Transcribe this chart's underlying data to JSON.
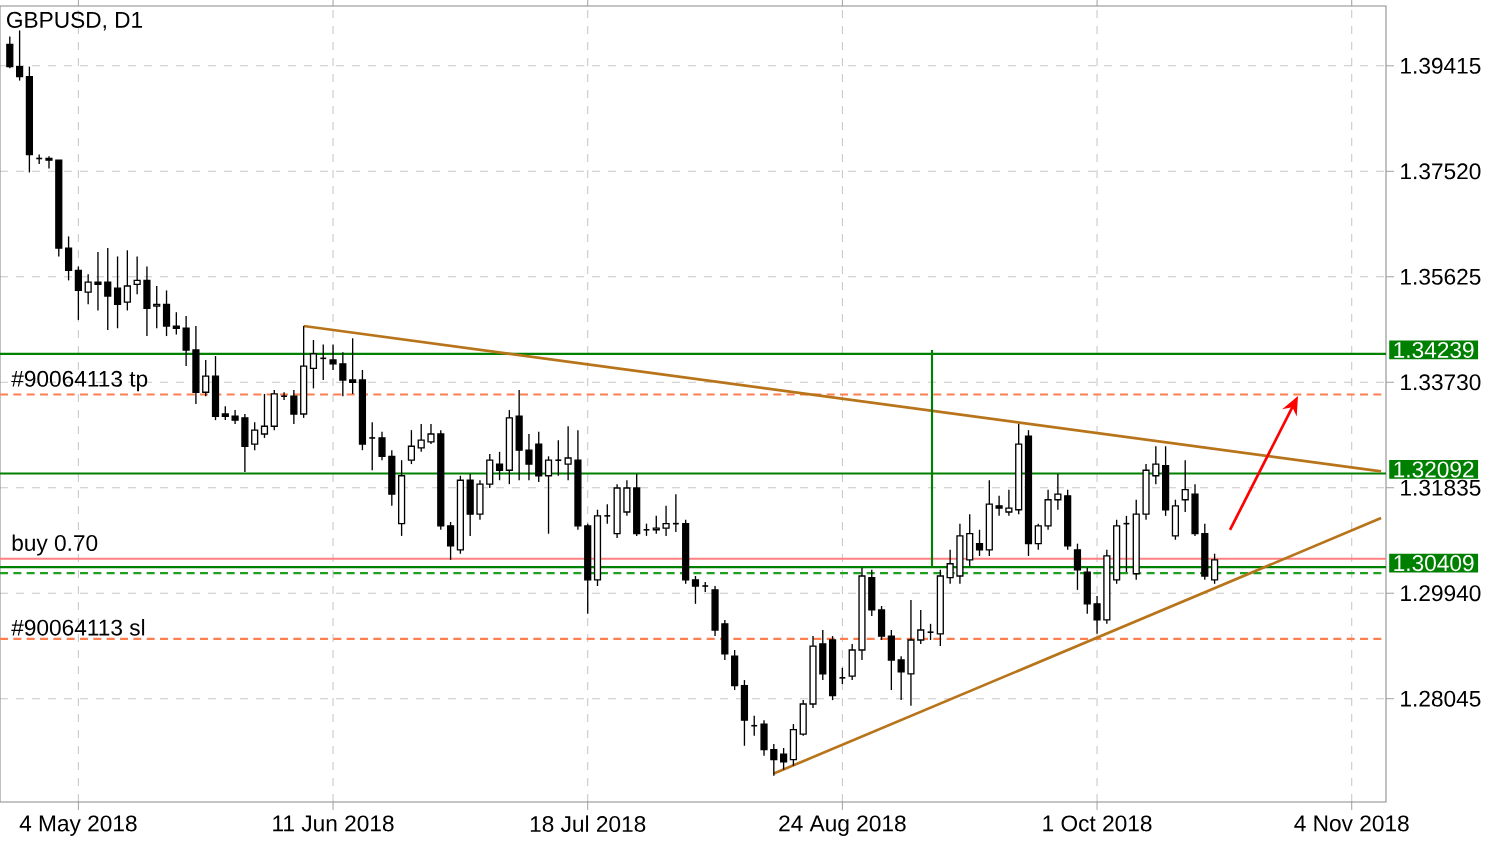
{
  "chart_data": {
    "type": "candlestick",
    "title": "GBPUSD, D1",
    "categories": [
      null,
      null,
      null,
      null,
      null,
      null,
      null,
      "4 May 2018",
      null,
      null,
      null,
      null,
      null,
      null,
      null,
      null,
      null,
      null,
      null,
      null,
      null,
      null,
      null,
      null,
      null,
      null,
      null,
      null,
      null,
      null,
      null,
      null,
      null,
      "11 Jun 2018",
      null,
      null,
      null,
      null,
      null,
      null,
      null,
      null,
      null,
      null,
      null,
      null,
      null,
      null,
      null,
      null,
      null,
      null,
      null,
      null,
      null,
      null,
      null,
      null,
      null,
      "18 Jul 2018",
      null,
      null,
      null,
      null,
      null,
      null,
      null,
      null,
      null,
      null,
      null,
      null,
      null,
      null,
      null,
      null,
      null,
      null,
      null,
      null,
      null,
      null,
      null,
      null,
      null,
      "24 Aug 2018",
      null,
      null,
      null,
      null,
      null,
      null,
      null,
      null,
      null,
      null,
      null,
      null,
      null,
      null,
      null,
      null,
      null,
      null,
      null,
      null,
      null,
      null,
      null,
      null,
      null,
      "1 Oct 2018",
      null,
      null,
      null,
      null,
      null,
      null,
      null,
      null,
      null,
      null,
      null,
      null,
      null,
      null,
      null,
      null,
      null,
      null,
      null,
      null,
      null,
      null,
      null,
      null,
      null,
      "4 Nov 2018",
      null,
      null,
      null
    ],
    "ohlc": [
      [
        1.398,
        1.3994,
        1.3937,
        1.394
      ],
      [
        1.394,
        1.4005,
        1.3915,
        1.3922
      ],
      [
        1.3922,
        1.394,
        1.375,
        1.3782
      ],
      [
        1.3775,
        1.3782,
        1.3765,
        1.3775
      ],
      [
        1.3775,
        1.3779,
        1.3757,
        1.3772
      ],
      [
        1.3772,
        1.3772,
        1.3599,
        1.3614
      ],
      [
        1.3614,
        1.3635,
        1.3556,
        1.3574
      ],
      [
        1.3574,
        1.3581,
        1.3485,
        1.3538
      ],
      [
        1.3535,
        1.3567,
        1.3513,
        1.3553
      ],
      [
        1.3553,
        1.3607,
        1.3502,
        1.3549
      ],
      [
        1.3553,
        1.3614,
        1.3467,
        1.3528
      ],
      [
        1.3542,
        1.3599,
        1.347,
        1.3513
      ],
      [
        1.3517,
        1.361,
        1.3502,
        1.3546
      ],
      [
        1.3549,
        1.3599,
        1.3531,
        1.3556
      ],
      [
        1.3556,
        1.3581,
        1.3456,
        1.3506
      ],
      [
        1.351,
        1.3546,
        1.347,
        1.3513
      ],
      [
        1.3513,
        1.3538,
        1.3456,
        1.3474
      ],
      [
        1.3474,
        1.3499,
        1.3459,
        1.347
      ],
      [
        1.347,
        1.3492,
        1.3402,
        1.3431
      ],
      [
        1.3431,
        1.3474,
        1.3334,
        1.3355
      ],
      [
        1.3355,
        1.3413,
        1.3348,
        1.3384
      ],
      [
        1.3384,
        1.342,
        1.3305,
        1.3312
      ],
      [
        1.3316,
        1.333,
        1.3305,
        1.3312
      ],
      [
        1.3312,
        1.3323,
        1.3298,
        1.3305
      ],
      [
        1.3309,
        1.3316,
        1.3212,
        1.3258
      ],
      [
        1.3262,
        1.3301,
        1.3251,
        1.3287
      ],
      [
        1.328,
        1.3352,
        1.3273,
        1.3294
      ],
      [
        1.3294,
        1.3359,
        1.3287,
        1.3352
      ],
      [
        1.3348,
        1.3355,
        1.3341,
        1.3348
      ],
      [
        1.3348,
        1.3359,
        1.3298,
        1.3316
      ],
      [
        1.3316,
        1.3474,
        1.3309,
        1.3402
      ],
      [
        1.3398,
        1.3449,
        1.3362,
        1.3424
      ],
      [
        1.3416,
        1.3441,
        1.3377,
        1.3416
      ],
      [
        1.3413,
        1.3441,
        1.3395,
        1.3406
      ],
      [
        1.3406,
        1.3427,
        1.3348,
        1.3377
      ],
      [
        1.3377,
        1.3452,
        1.3352,
        1.3373
      ],
      [
        1.3377,
        1.3395,
        1.3251,
        1.3262
      ],
      [
        1.3273,
        1.3301,
        1.3215,
        1.3273
      ],
      [
        1.3273,
        1.3284,
        1.3233,
        1.324
      ],
      [
        1.324,
        1.3251,
        1.3151,
        1.3172
      ],
      [
        1.3119,
        1.3233,
        1.3097,
        1.3205
      ],
      [
        1.3233,
        1.3287,
        1.3226,
        1.3258
      ],
      [
        1.3255,
        1.3298,
        1.3248,
        1.3269
      ],
      [
        1.3266,
        1.3298,
        1.3262,
        1.328
      ],
      [
        1.328,
        1.3287,
        1.3108,
        1.3115
      ],
      [
        1.3115,
        1.3122,
        1.3054,
        1.3079
      ],
      [
        1.3072,
        1.3205,
        1.3065,
        1.3197
      ],
      [
        1.3197,
        1.3208,
        1.3097,
        1.3136
      ],
      [
        1.3136,
        1.3197,
        1.3126,
        1.319
      ],
      [
        1.319,
        1.3244,
        1.3183,
        1.3233
      ],
      [
        1.3226,
        1.3248,
        1.3197,
        1.3215
      ],
      [
        1.3215,
        1.3323,
        1.319,
        1.3309
      ],
      [
        1.3312,
        1.3359,
        1.3197,
        1.3251
      ],
      [
        1.3251,
        1.328,
        1.3197,
        1.3226
      ],
      [
        1.3262,
        1.3284,
        1.3194,
        1.3205
      ],
      [
        1.3205,
        1.324,
        1.3101,
        1.3233
      ],
      [
        1.3233,
        1.3269,
        1.3205,
        1.3233
      ],
      [
        1.3226,
        1.3294,
        1.3197,
        1.3237
      ],
      [
        1.3233,
        1.3287,
        1.3108,
        1.3115
      ],
      [
        1.3115,
        1.3119,
        1.2957,
        1.3018
      ],
      [
        1.3018,
        1.3144,
        1.3007,
        1.3133
      ],
      [
        1.3133,
        1.3154,
        1.3119,
        1.3133
      ],
      [
        1.3101,
        1.319,
        1.3093,
        1.3183
      ],
      [
        1.314,
        1.3197,
        1.3133,
        1.3183
      ],
      [
        1.3183,
        1.3208,
        1.3097,
        1.3101
      ],
      [
        1.3108,
        1.3119,
        1.3097,
        1.3108
      ],
      [
        1.3108,
        1.3133,
        1.3101,
        1.3111
      ],
      [
        1.3111,
        1.3151,
        1.3097,
        1.3119
      ],
      [
        1.3119,
        1.3172,
        1.3104,
        1.3119
      ],
      [
        1.3119,
        1.3126,
        1.3011,
        1.3018
      ],
      [
        1.3018,
        1.3025,
        1.2975,
        1.3007
      ],
      [
        1.3007,
        1.3014,
        1.2996,
        1.3007
      ],
      [
        1.3,
        1.3007,
        1.2917,
        1.2928
      ],
      [
        1.2939,
        1.2946,
        1.2874,
        1.2885
      ],
      [
        1.2881,
        1.2892,
        1.282,
        1.2828
      ],
      [
        1.2828,
        1.2838,
        1.272,
        1.2766
      ],
      [
        1.2756,
        1.2774,
        1.2738,
        1.2756
      ],
      [
        1.2759,
        1.2766,
        1.2702,
        1.2713
      ],
      [
        1.2713,
        1.2723,
        1.2666,
        1.2695
      ],
      [
        1.2705,
        1.2716,
        1.2677,
        1.2691
      ],
      [
        1.2695,
        1.2759,
        1.2684,
        1.2749
      ],
      [
        1.2741,
        1.2802,
        1.2738,
        1.2795
      ],
      [
        1.2795,
        1.2917,
        1.2788,
        1.2899
      ],
      [
        1.2903,
        1.2928,
        1.2838,
        1.2849
      ],
      [
        1.291,
        1.2917,
        1.2802,
        1.281
      ],
      [
        1.2842,
        1.286,
        1.2831,
        1.2842
      ],
      [
        1.2845,
        1.2903,
        1.2838,
        1.2892
      ],
      [
        1.2892,
        1.304,
        1.2874,
        1.3025
      ],
      [
        1.3022,
        1.3036,
        1.2953,
        1.2964
      ],
      [
        1.2964,
        1.2971,
        1.291,
        1.2917
      ],
      [
        1.2917,
        1.2928,
        1.282,
        1.2874
      ],
      [
        1.2874,
        1.2881,
        1.2802,
        1.2853
      ],
      [
        1.2849,
        1.2982,
        1.2792,
        1.291
      ],
      [
        1.291,
        1.2964,
        1.2903,
        1.2928
      ],
      [
        1.2924,
        1.2939,
        1.291,
        1.2924
      ],
      [
        1.2921,
        1.3036,
        1.2899,
        1.3025
      ],
      [
        1.3022,
        1.3072,
        1.3011,
        1.3047
      ],
      [
        1.3025,
        1.3119,
        1.3011,
        1.3097
      ],
      [
        1.3054,
        1.3136,
        1.3043,
        1.3101
      ],
      [
        1.3083,
        1.3108,
        1.3061,
        1.3072
      ],
      [
        1.3072,
        1.3197,
        1.3061,
        1.3154
      ],
      [
        1.3151,
        1.3169,
        1.3133,
        1.3147
      ],
      [
        1.314,
        1.318,
        1.3133,
        1.3147
      ],
      [
        1.3144,
        1.3298,
        1.3136,
        1.3262
      ],
      [
        1.3276,
        1.3287,
        1.3061,
        1.3083
      ],
      [
        1.3083,
        1.3119,
        1.3072,
        1.3115
      ],
      [
        1.3115,
        1.318,
        1.3108,
        1.3162
      ],
      [
        1.3162,
        1.3208,
        1.3144,
        1.3172
      ],
      [
        1.3169,
        1.318,
        1.3072,
        1.3079
      ],
      [
        1.3072,
        1.3083,
        1.3,
        1.3036
      ],
      [
        1.3032,
        1.304,
        1.2957,
        1.2975
      ],
      [
        1.2975,
        1.2989,
        1.2921,
        1.2946
      ],
      [
        1.2946,
        1.3072,
        1.2939,
        1.3061
      ],
      [
        1.3018,
        1.3126,
        1.3011,
        1.3115
      ],
      [
        1.3119,
        1.3133,
        1.3032,
        1.3119
      ],
      [
        1.3029,
        1.3162,
        1.3018,
        1.3136
      ],
      [
        1.3136,
        1.3226,
        1.3126,
        1.3215
      ],
      [
        1.3205,
        1.3258,
        1.319,
        1.3226
      ],
      [
        1.3223,
        1.3258,
        1.3133,
        1.3144
      ],
      [
        1.3097,
        1.3162,
        1.309,
        1.3151
      ],
      [
        1.3162,
        1.3233,
        1.314,
        1.318
      ],
      [
        1.3172,
        1.319,
        1.3097,
        1.3101
      ],
      [
        1.3101,
        1.3119,
        1.3018,
        1.3025
      ],
      [
        1.3018,
        1.3065,
        1.3011,
        1.3054
      ],
      null,
      null,
      null,
      null,
      null,
      null,
      null,
      null,
      null,
      null,
      null,
      null,
      null,
      null,
      null,
      null,
      null
    ],
    "series": [
      {
        "type": "line",
        "color": "#b8741a",
        "values": [
          null,
          null,
          null,
          null,
          null,
          null,
          null,
          null,
          null,
          null,
          null,
          null,
          null,
          null,
          null,
          null,
          null,
          null,
          null,
          null,
          null,
          null,
          null,
          null,
          null,
          null,
          null,
          null,
          null,
          null,
          1.3474,
          null,
          null,
          null,
          null,
          null,
          null,
          null,
          null,
          null,
          null,
          null,
          null,
          null,
          null,
          null,
          null,
          null,
          null,
          null,
          null,
          null,
          null,
          null,
          null,
          null,
          null,
          null,
          null,
          null,
          null,
          null,
          null,
          null,
          null,
          null,
          null,
          null,
          null,
          null,
          null,
          null,
          null,
          null,
          null,
          null,
          null,
          null,
          null,
          null,
          null,
          null,
          null,
          null,
          null,
          null,
          null,
          null,
          null,
          null,
          null,
          null,
          null,
          null,
          null,
          null,
          null,
          null,
          null,
          null,
          null,
          null,
          null,
          null,
          null,
          null,
          null,
          null,
          null,
          null,
          null,
          null,
          null,
          null,
          null,
          null,
          null,
          null,
          null,
          null,
          null,
          null,
          null,
          null,
          null,
          null,
          null,
          null,
          null,
          null,
          null,
          null,
          null,
          null,
          null,
          null,
          null,
          null,
          null,
          null,
          1.3213
        ]
      },
      {
        "type": "line",
        "color": "#b8741a",
        "values": [
          null,
          null,
          null,
          null,
          null,
          null,
          null,
          null,
          null,
          null,
          null,
          null,
          null,
          null,
          null,
          null,
          null,
          null,
          null,
          null,
          null,
          null,
          null,
          null,
          null,
          null,
          null,
          null,
          null,
          null,
          null,
          null,
          null,
          null,
          null,
          null,
          null,
          null,
          null,
          null,
          null,
          null,
          null,
          null,
          null,
          null,
          null,
          null,
          null,
          null,
          null,
          null,
          null,
          null,
          null,
          null,
          null,
          null,
          null,
          null,
          null,
          null,
          null,
          null,
          null,
          null,
          null,
          null,
          null,
          null,
          null,
          null,
          null,
          null,
          null,
          null,
          null,
          null,
          1.267,
          null,
          null,
          null,
          null,
          null,
          null,
          null,
          null,
          null,
          null,
          null,
          null,
          null,
          null,
          null,
          null,
          null,
          null,
          null,
          null,
          null,
          null,
          null,
          null,
          null,
          null,
          null,
          null,
          null,
          null,
          null,
          null,
          null,
          null,
          null,
          null,
          null,
          null,
          null,
          null,
          null,
          null,
          null,
          null,
          null,
          null,
          null,
          null,
          null,
          null,
          null,
          null,
          null,
          null,
          null,
          null,
          null,
          null,
          null,
          null,
          null,
          1.3129
        ]
      }
    ],
    "ref_lines": [
      {
        "axis": "y",
        "value": 1.34239,
        "label": "1.34239",
        "color": "#008000"
      },
      {
        "axis": "y",
        "value": 1.32092,
        "label": "1.32092",
        "color": "#008000"
      },
      {
        "axis": "y",
        "value": 1.30409,
        "label": "1.30409",
        "color": "#008000"
      },
      {
        "axis": "y",
        "value": 1.3056,
        "color": "#ff8080"
      },
      {
        "axis": "y",
        "value": 1.303,
        "color": "#20a020",
        "line_style": "dashed"
      },
      {
        "axis": "y",
        "value": 1.3351,
        "color": "#ff7f50",
        "line_style": "dashed"
      },
      {
        "axis": "y",
        "value": 1.2912,
        "color": "#ff7f50",
        "line_style": "dashed"
      }
    ],
    "annotations": [
      {
        "text": "buy 0.70",
        "y": 1.3056
      },
      {
        "text": "#90064113 tp",
        "y": 1.3351
      },
      {
        "text": "#90064113 sl",
        "y": 1.2912
      }
    ],
    "ylim": [
      1.2619,
      1.4049
    ],
    "yticks": [
      1.39415,
      {
        "value": 1.3752,
        "label": "1.37520"
      },
      1.35625,
      {
        "value": 1.3373,
        "label": "1.33730"
      },
      1.31835,
      {
        "value": 1.2994,
        "label": "1.29940"
      },
      1.28045
    ],
    "grid": true
  }
}
